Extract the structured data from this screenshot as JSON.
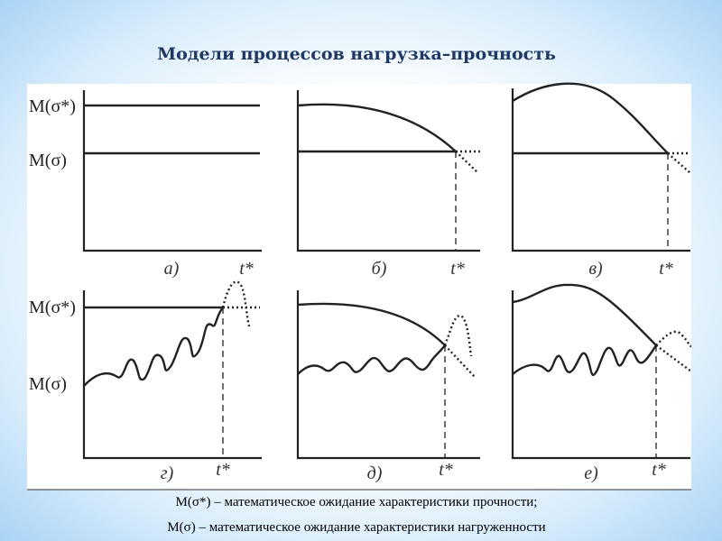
{
  "title": "Модели процессов нагрузка–прочность",
  "y_labels": {
    "strength": "M(σ*)",
    "load": "M(σ)"
  },
  "panels": [
    {
      "label": "а)",
      "time": "t*"
    },
    {
      "label": "б)",
      "time": "t*"
    },
    {
      "label": "в)",
      "time": "t*"
    },
    {
      "label": "г)",
      "time": "t*"
    },
    {
      "label": "д)",
      "time": "t*"
    },
    {
      "label": "е)",
      "time": "t*"
    }
  ],
  "caption": [
    "M(σ*) – математическое ожидание характеристики прочности;",
    "M(σ) – математическое ожидание характеристики нагруженности"
  ]
}
